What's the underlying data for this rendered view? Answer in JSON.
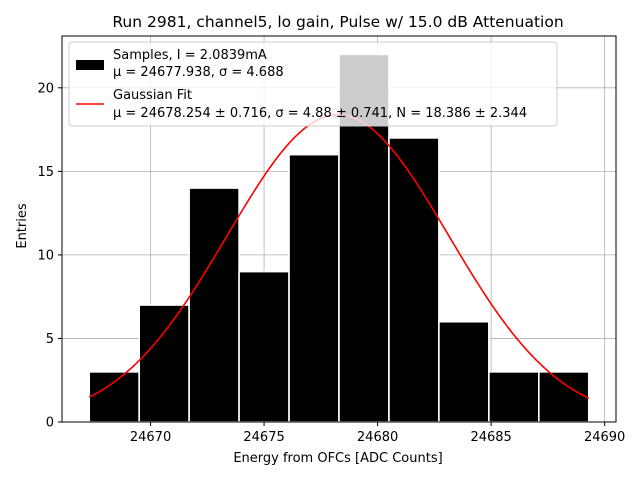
{
  "chart_data": {
    "type": "bar",
    "title": "Run 2981, channel5, lo gain, Pulse w/ 15.0 dB Attenuation",
    "xlabel": "Energy from OFCs [ADC Counts]",
    "ylabel": "Entries",
    "xlim": [
      24666.1,
      24690.5
    ],
    "ylim": [
      0,
      23.1
    ],
    "xticks": [
      24670,
      24675,
      24680,
      24685,
      24690
    ],
    "yticks": [
      0,
      5,
      10,
      15,
      20
    ],
    "grid": true,
    "legend_position": "top-left",
    "bin_edges": [
      24667.3,
      24669.5,
      24671.7,
      24673.9,
      24676.1,
      24678.3,
      24680.5,
      24682.7,
      24684.9,
      24687.1,
      24689.3
    ],
    "counts": [
      3,
      7,
      14,
      9,
      16,
      22,
      17,
      6,
      3,
      3
    ],
    "series": [
      {
        "name": "Samples, I = 2.0839mA",
        "stats": "μ = 24677.938, σ = 4.688",
        "type": "histogram",
        "color": "#000000"
      },
      {
        "name": "Gaussian Fit",
        "stats": "μ = 24678.254 ± 0.716, σ = 4.88 ± 0.741, N = 18.386 ± 2.344",
        "type": "line",
        "color": "#ff0000",
        "mu": 24678.254,
        "sigma": 4.88,
        "amplitude": 18.386
      }
    ],
    "colors": {
      "bars": "#000000",
      "bar_edge": "#ffffff",
      "fit": "#ff0000",
      "grid": "#b0b0b0",
      "legend_overlap_bar": "#cccccc"
    }
  }
}
